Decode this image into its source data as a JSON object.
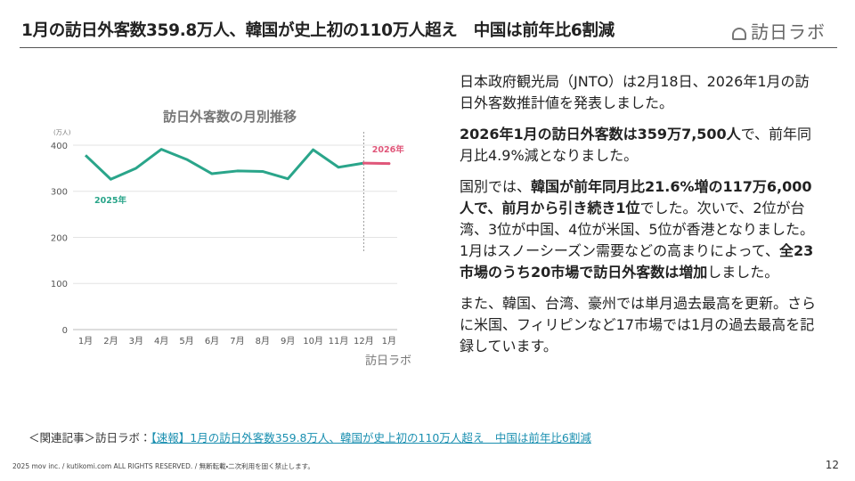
{
  "header": {
    "title": "1月の訪日外客数359.8万人、韓国が史上初の110万人超え　中国は前年比6割減",
    "logo": "訪日ラボ"
  },
  "chart_data": {
    "type": "line",
    "title": "訪日外客数の月別推移",
    "y_unit": "(万人)",
    "categories": [
      "1月",
      "2月",
      "3月",
      "4月",
      "5月",
      "6月",
      "7月",
      "8月",
      "9月",
      "10月",
      "11月",
      "12月",
      "1月"
    ],
    "series": [
      {
        "name": "2025年",
        "color": "#2aa58a",
        "values": [
          378,
          326,
          350,
          391,
          369,
          338,
          344,
          343,
          327,
          390,
          352,
          361,
          null
        ]
      },
      {
        "name": "2026年",
        "color": "#e0577a",
        "values": [
          null,
          null,
          null,
          null,
          null,
          null,
          null,
          null,
          null,
          null,
          null,
          null,
          360
        ]
      }
    ],
    "ylim": [
      0,
      425
    ],
    "yticks": [
      0,
      100,
      200,
      300,
      400
    ],
    "grid": true,
    "logo": "訪日ラボ"
  },
  "body": {
    "paragraphs": [
      [
        {
          "text": "日本政府観光局（JNTO）は2月18日、2026年1月の訪日外客数推計値を発表しました。"
        }
      ],
      [
        {
          "text": "2026年1月の訪日外客数は359万7,500人",
          "bold": true
        },
        {
          "text": "で、前年同月比4.9%減となりました。"
        }
      ],
      [
        {
          "text": "国別では、"
        },
        {
          "text": "韓国が前年同月比21.6%増の117万6,000人で、前月から引き続き1位",
          "bold": true
        },
        {
          "text": "でした。次いで、2位が台湾、3位が中国、4位が米国、5位が香港となりました。1月はスノーシーズン需要などの高まりによって、"
        },
        {
          "text": "全23市場のうち20市場で訪日外客数は増加",
          "bold": true
        },
        {
          "text": "しました。"
        }
      ],
      [
        {
          "text": "また、韓国、台湾、豪州では単月過去最高を更新。さらに米国、フィリピンなど17市場では1月の過去最高を記録しています。"
        }
      ]
    ]
  },
  "related": {
    "label": "＜関連記事＞訪日ラボ：",
    "link": "【速報】1月の訪日外客数359.8万人、韓国が史上初の110万人超え　中国は前年比6割減"
  },
  "footer": {
    "copyright": "2025 mov inc. / kutikomi.com ALL RIGHTS RESERVED. / 無断転載・二次利用を固く禁止します。",
    "page": 12
  }
}
